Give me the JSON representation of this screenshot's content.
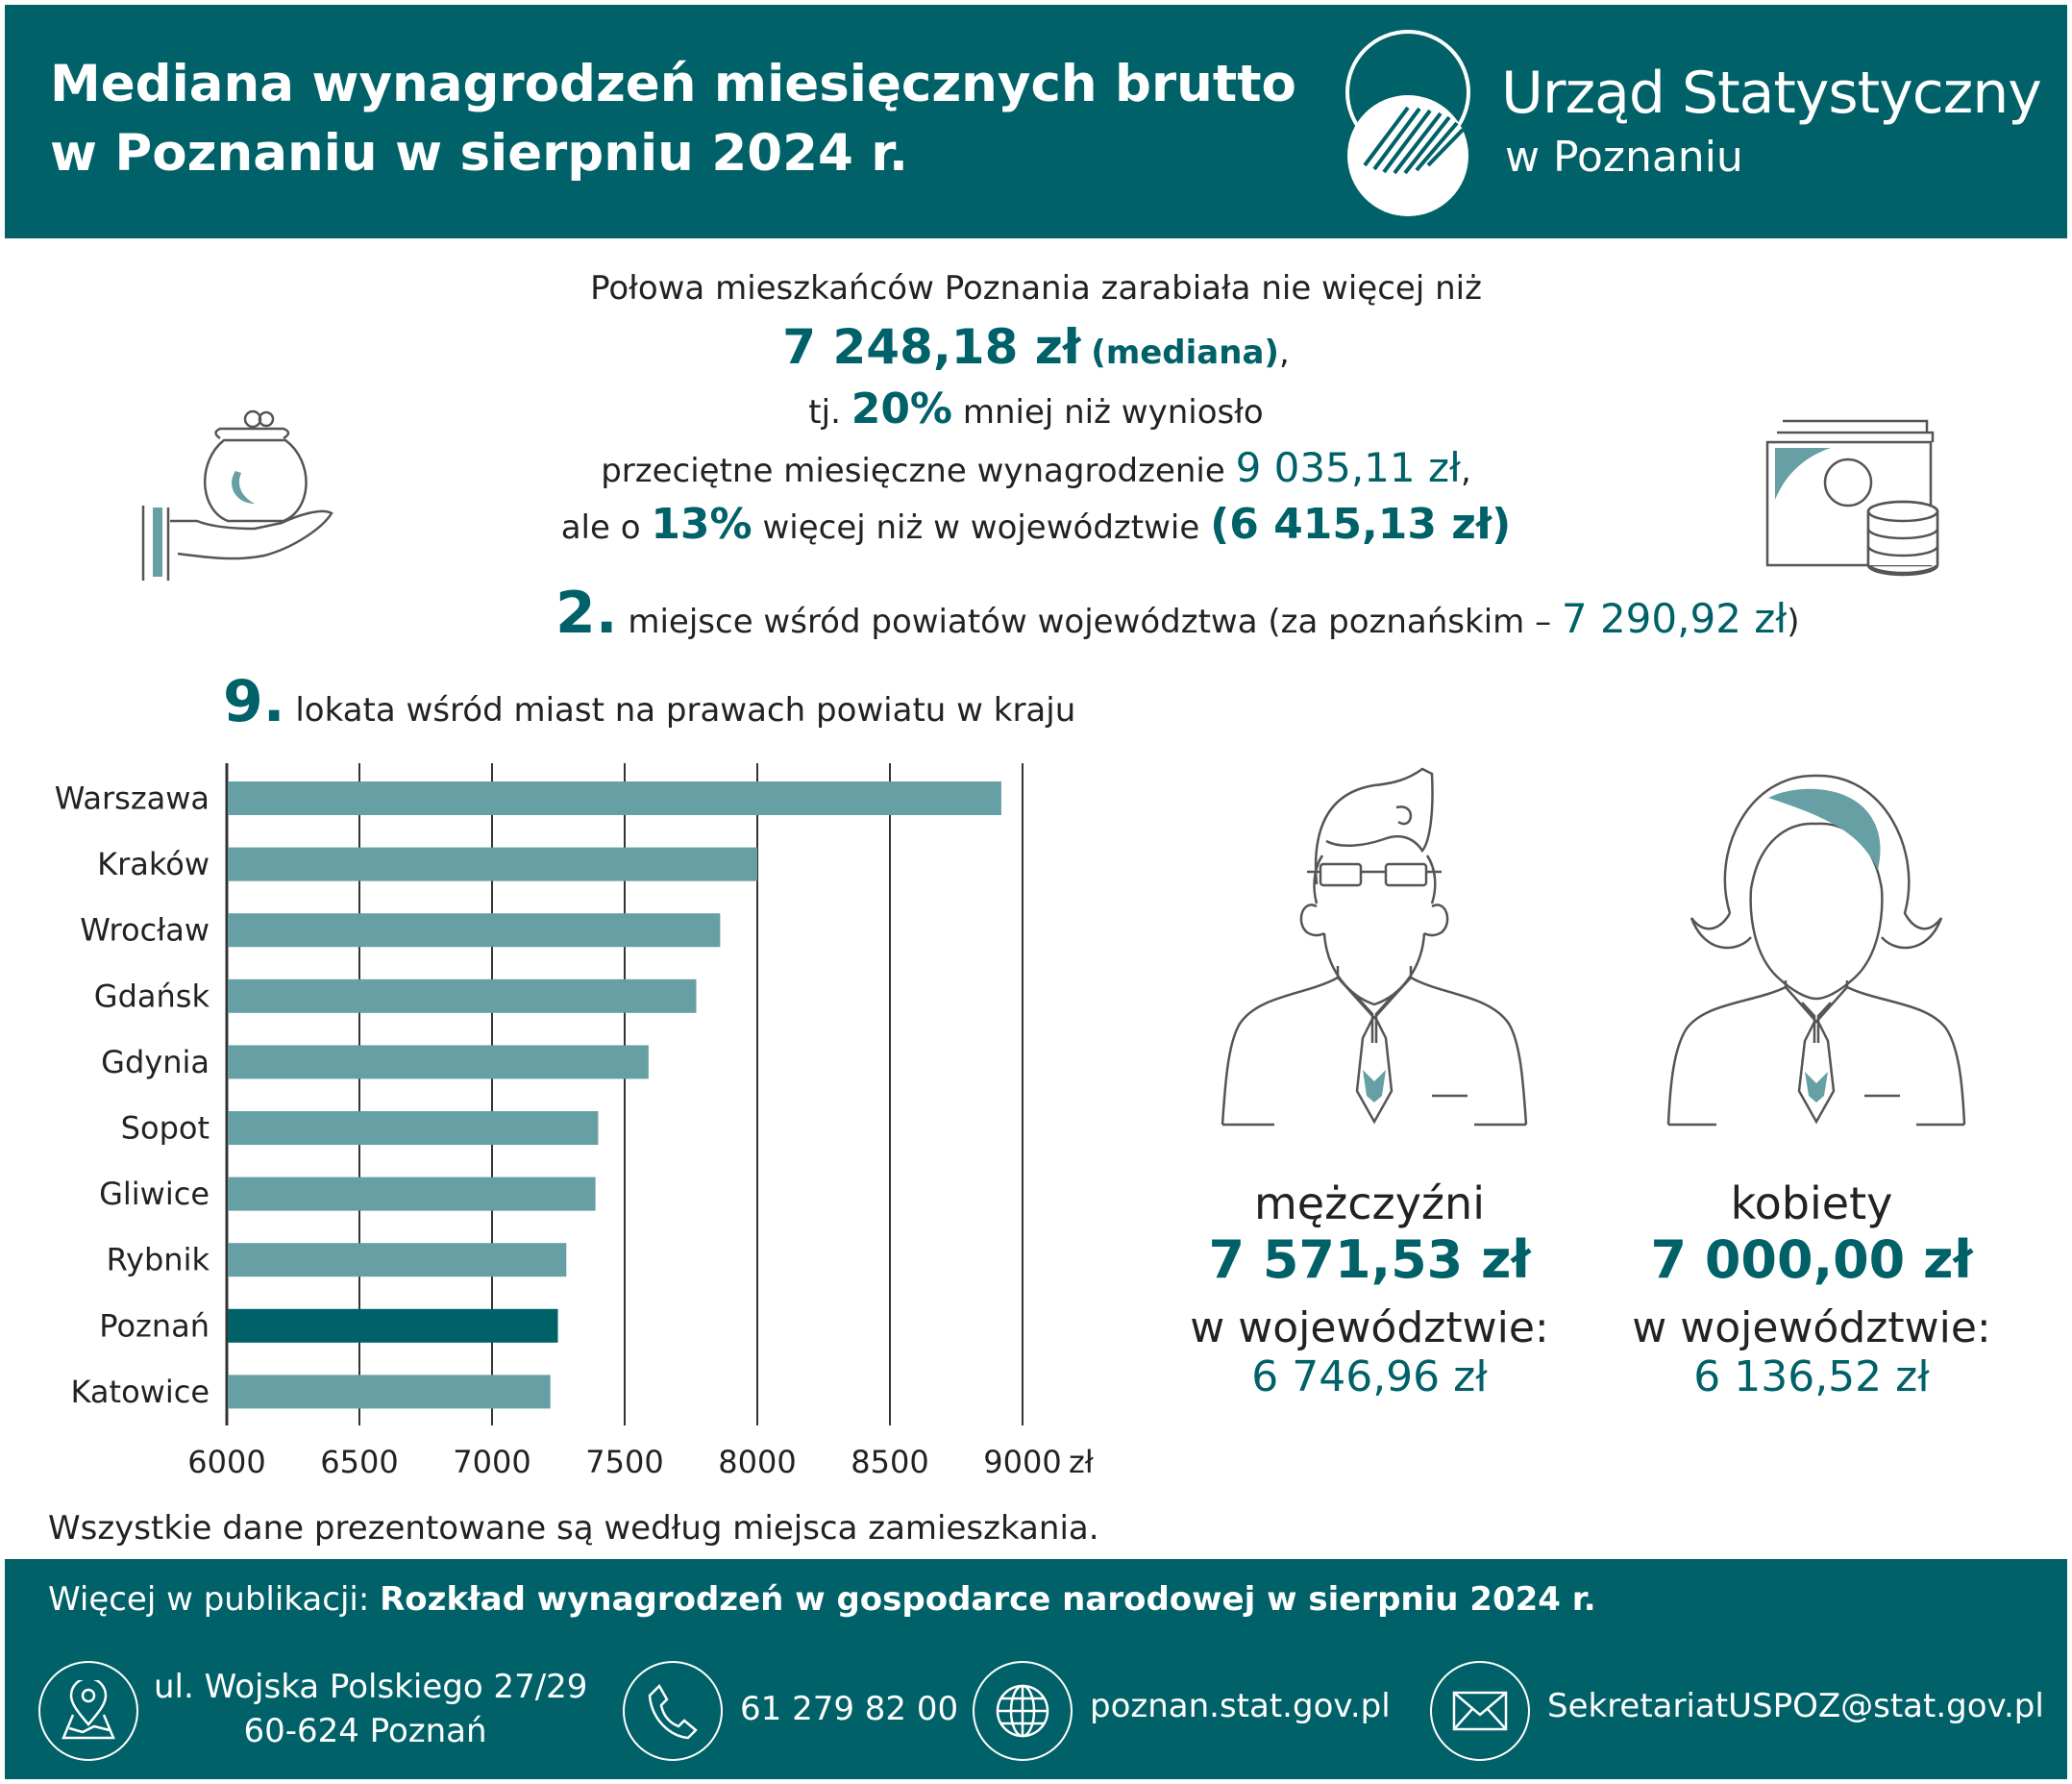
{
  "header": {
    "title_line1": "Mediana wynagrodzeń miesięcznych brutto",
    "title_line2": "w Poznaniu w sierpniu 2024 r.",
    "org_name": "Urząd Statystyczny",
    "org_sub": "w Poznaniu"
  },
  "summary": {
    "line1": "Połowa mieszkańców Poznania zarabiała nie więcej niż",
    "median_value": "7 248,18 zł",
    "median_note": "(mediana)",
    "median_comma": ",",
    "line3_pre": "tj.",
    "line3_pct": "20%",
    "line3_post": "mniej niż wyniosło",
    "line4_text": "przeciętne miesięczne wynagrodzenie",
    "line4_value": "9 035,11 zł",
    "line4_comma": ",",
    "line5_pre": "ale o",
    "line5_pct": "13%",
    "line5_mid": "więcej niż w województwie",
    "line5_value": "(6 415,13 zł)"
  },
  "ranking": {
    "county_rank": "2.",
    "county_text": "miejsce wśród powiatów województwa (za poznańskim –",
    "county_value": "7 290,92 zł",
    "county_close": ")",
    "city_rank": "9.",
    "city_text": "lokata wśród miast na prawach powiatu w kraju"
  },
  "chart_data": {
    "type": "bar",
    "orientation": "horizontal",
    "categories": [
      "Warszawa",
      "Kraków",
      "Wrocław",
      "Gdańsk",
      "Gdynia",
      "Sopot",
      "Gliwice",
      "Rybnik",
      "Poznań",
      "Katowice"
    ],
    "values": [
      8920,
      8000,
      7860,
      7770,
      7590,
      7400,
      7390,
      7280,
      7248.18,
      7220
    ],
    "highlight": "Poznań",
    "xlim": [
      6000,
      9000
    ],
    "ticks": [
      "6000",
      "6500",
      "7000",
      "7500",
      "8000",
      "8500",
      "9000"
    ],
    "unit": "zł",
    "grid": true,
    "bar_color": "#66a0a4",
    "highlight_color": "#006168"
  },
  "footnote": "Wszystkie dane prezentowane są według miejsca zamieszkania.",
  "men": {
    "label": "mężczyźni",
    "value": "7 571,53 zł",
    "region_label": "w województwie:",
    "region_value": "6 746,96 zł"
  },
  "women": {
    "label": "kobiety",
    "value": "7 000,00 zł",
    "region_label": "w województwie:",
    "region_value": "6 136,52 zł"
  },
  "footer": {
    "pub_prefix": "Więcej w publikacji:",
    "pub_title": "Rozkład wynagrodzeń w gospodarce narodowej w sierpniu 2024 r.",
    "address_line1": "ul. Wojska Polskiego 27/29",
    "address_line2": "60-624 Poznań",
    "phone": "61 279 82 00",
    "website": "poznan.stat.gov.pl",
    "email": "SekretariatUSPOZ@stat.gov.pl"
  },
  "icons": [
    "wallet-hand-icon",
    "money-coins-icon",
    "man-icon",
    "woman-icon",
    "location-icon",
    "phone-icon",
    "globe-icon",
    "mail-icon"
  ],
  "colors": {
    "primary": "#006168",
    "bar": "#66a0a4"
  }
}
